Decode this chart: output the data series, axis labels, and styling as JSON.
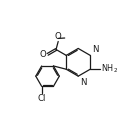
{
  "bg_color": "#ffffff",
  "line_color": "#1a1a1a",
  "line_width": 0.9,
  "font_size": 6.2,
  "xlim": [
    0.5,
    9.5
  ],
  "ylim": [
    1.0,
    9.5
  ]
}
